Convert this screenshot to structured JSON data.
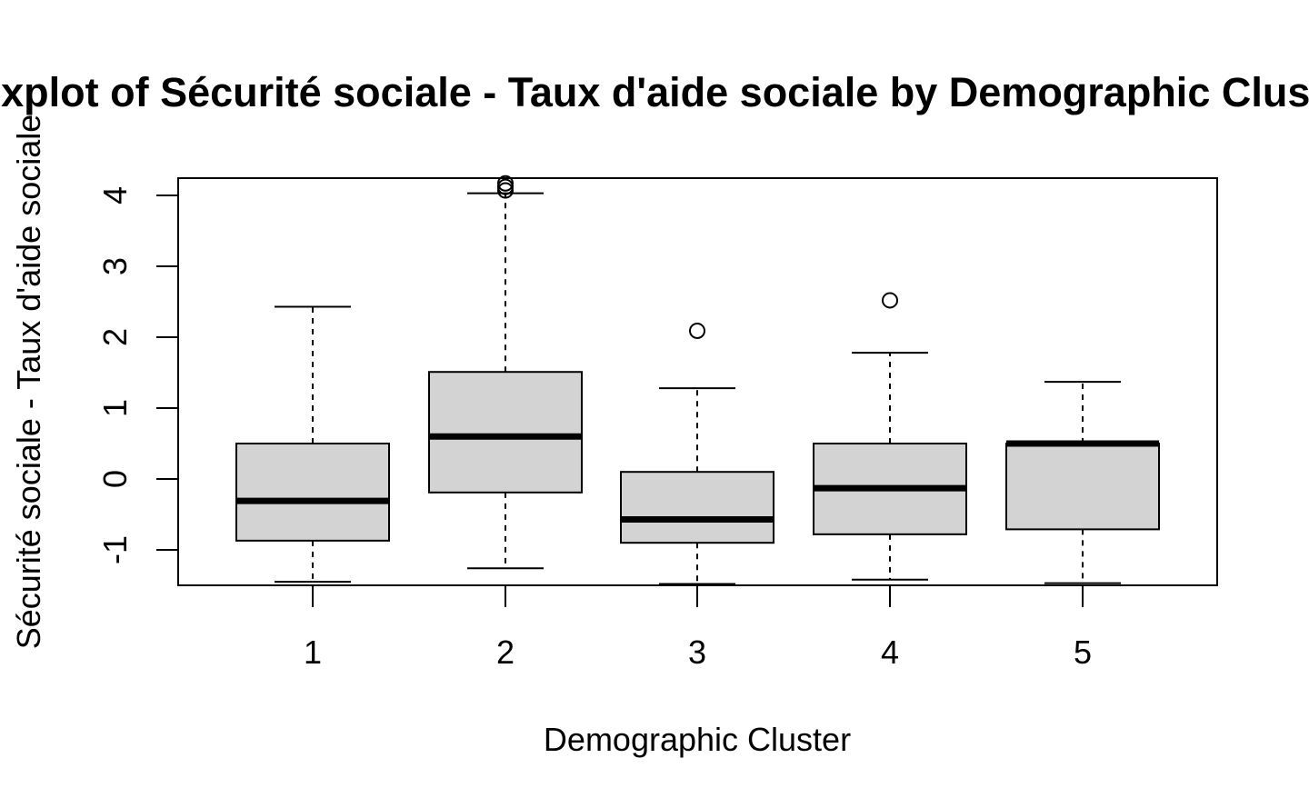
{
  "chart_data": {
    "type": "boxplot",
    "title": "Boxplot of Sécurité sociale - Taux d'aide sociale by Demographic Cluster",
    "xlabel": "Demographic Cluster",
    "ylabel": "Sécurité sociale - Taux d'aide sociale",
    "ylim": [
      -1.48,
      4.25
    ],
    "yticks": [
      "-1",
      "0",
      "1",
      "2",
      "3",
      "4"
    ],
    "categories": [
      "1",
      "2",
      "3",
      "4",
      "5"
    ],
    "boxes": [
      {
        "category": "1",
        "whisker_low": -1.45,
        "q1": -0.87,
        "median": -0.31,
        "q3": 0.5,
        "whisker_high": 2.43,
        "outliers": []
      },
      {
        "category": "2",
        "whisker_low": -1.26,
        "q1": -0.19,
        "median": 0.6,
        "q3": 1.51,
        "whisker_high": 4.03,
        "outliers": [
          4.07,
          4.12,
          4.17
        ]
      },
      {
        "category": "3",
        "whisker_low": -1.48,
        "q1": -0.9,
        "median": -0.57,
        "q3": 0.1,
        "whisker_high": 1.28,
        "outliers": [
          2.09
        ]
      },
      {
        "category": "4",
        "whisker_low": -1.42,
        "q1": -0.78,
        "median": -0.13,
        "q3": 0.5,
        "whisker_high": 1.78,
        "outliers": [
          2.52
        ]
      },
      {
        "category": "5",
        "whisker_low": -1.47,
        "q1": -0.71,
        "median": 0.5,
        "q3": 0.5,
        "whisker_high": 1.37,
        "outliers": []
      }
    ],
    "box_fill": "#d3d3d3",
    "grid": false,
    "legend": "none"
  }
}
